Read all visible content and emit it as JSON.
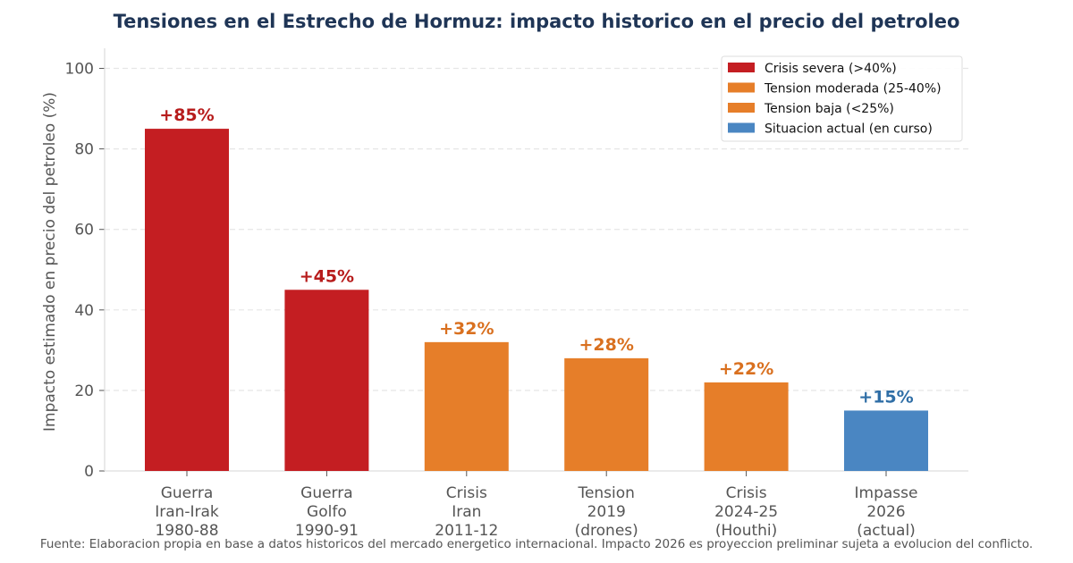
{
  "chart_data": {
    "type": "bar",
    "title": "Tensiones en el Estrecho de Hormuz: impacto historico en el precio del petroleo",
    "ylabel": "Impacto estimado en precio del petroleo (%)",
    "xlabel": "",
    "ylim": [
      0,
      105
    ],
    "yticks": [
      0,
      20,
      40,
      60,
      80,
      100
    ],
    "grid": "horizontal dashed",
    "categories": [
      [
        "Guerra",
        "Iran-Irak",
        "1980-88"
      ],
      [
        "Guerra",
        "Golfo",
        "1990-91"
      ],
      [
        "Crisis",
        "Iran",
        "2011-12"
      ],
      [
        "Tension",
        "2019",
        "(drones)"
      ],
      [
        "Crisis",
        "2024-25",
        "(Houthi)"
      ],
      [
        "Impasse",
        "2026",
        "(actual)"
      ]
    ],
    "values": [
      85,
      45,
      32,
      28,
      22,
      15
    ],
    "value_labels": [
      "+85%",
      "+45%",
      "+32%",
      "+28%",
      "+22%",
      "+15%"
    ],
    "bar_colors": [
      "#c41e22",
      "#c41e22",
      "#e67e29",
      "#e67e29",
      "#e67e29",
      "#4a86c2"
    ],
    "label_colors": [
      "#b71c1c",
      "#b71c1c",
      "#d9701f",
      "#d9701f",
      "#d9701f",
      "#2f6ea6"
    ],
    "legend": {
      "position": "top-right",
      "items": [
        {
          "label": "Crisis severa (>40%)",
          "color": "#c41e22"
        },
        {
          "label": "Tension moderada (25-40%)",
          "color": "#e67e29"
        },
        {
          "label": "Tension baja (<25%)",
          "color": "#e67e29"
        },
        {
          "label": "Situacion actual (en curso)",
          "color": "#4a86c2"
        }
      ]
    },
    "footnote": "Fuente: Elaboracion propia en base a datos historicos del mercado energetico internacional. Impacto 2026 es proyeccion preliminar sujeta a evolucion del conflicto."
  }
}
